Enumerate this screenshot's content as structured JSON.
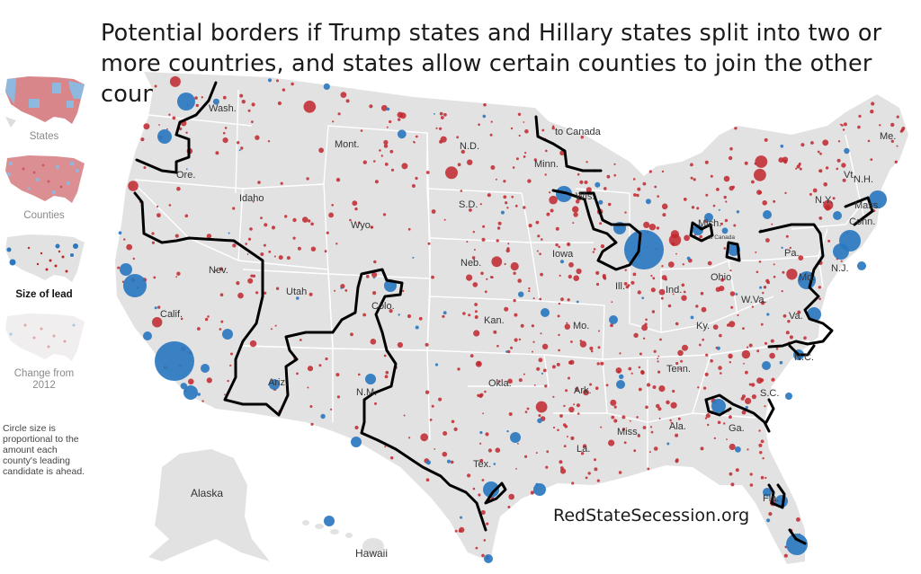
{
  "title": "Potential borders if Trump states and Hillary states split into two or more countries, and states allow certain counties to join the other country",
  "sidebar": {
    "thumbnails": [
      {
        "label": "States",
        "active": false
      },
      {
        "label": "Counties",
        "active": false
      },
      {
        "label": "Size of lead",
        "active": true
      },
      {
        "label": "Change from 2012",
        "active": false
      }
    ],
    "note": "Circle size is proportional to the amount each county's leading candidate is ahead."
  },
  "watermark": "RedStateSecession.org",
  "colors": {
    "land": "#e2e2e2",
    "state_border": "#ffffff",
    "trump": "#c0272d",
    "hillary": "#2a78c0",
    "secession_border": "#000000"
  },
  "state_labels": [
    {
      "name": "Wash."
    },
    {
      "name": "Ore."
    },
    {
      "name": "Calif."
    },
    {
      "name": "Nev."
    },
    {
      "name": "Idaho"
    },
    {
      "name": "Mont."
    },
    {
      "name": "Wyo."
    },
    {
      "name": "Utah"
    },
    {
      "name": "Colo."
    },
    {
      "name": "Ariz."
    },
    {
      "name": "N.M."
    },
    {
      "name": "N.D."
    },
    {
      "name": "S.D."
    },
    {
      "name": "Neb."
    },
    {
      "name": "Kan."
    },
    {
      "name": "Okla."
    },
    {
      "name": "Tex."
    },
    {
      "name": "Minn."
    },
    {
      "name": "Iowa"
    },
    {
      "name": "Mo."
    },
    {
      "name": "Ark."
    },
    {
      "name": "La."
    },
    {
      "name": "Wis."
    },
    {
      "name": "Ill."
    },
    {
      "name": "Miss."
    },
    {
      "name": "Mich."
    },
    {
      "name": "Ind."
    },
    {
      "name": "Ohio"
    },
    {
      "name": "Ky."
    },
    {
      "name": "Tenn."
    },
    {
      "name": "Ala."
    },
    {
      "name": "Ga."
    },
    {
      "name": "Fla."
    },
    {
      "name": "S.C."
    },
    {
      "name": "N.C."
    },
    {
      "name": "Va."
    },
    {
      "name": "W.Va."
    },
    {
      "name": "Pa."
    },
    {
      "name": "N.Y."
    },
    {
      "name": "Md."
    },
    {
      "name": "N.J."
    },
    {
      "name": "Conn."
    },
    {
      "name": "Mass."
    },
    {
      "name": "Vt."
    },
    {
      "name": "N.H."
    },
    {
      "name": "Me."
    },
    {
      "name": "Alaska"
    },
    {
      "name": "Hawaii"
    }
  ],
  "annotations": [
    {
      "text": "to Canada"
    },
    {
      "text": "to Canada"
    }
  ]
}
